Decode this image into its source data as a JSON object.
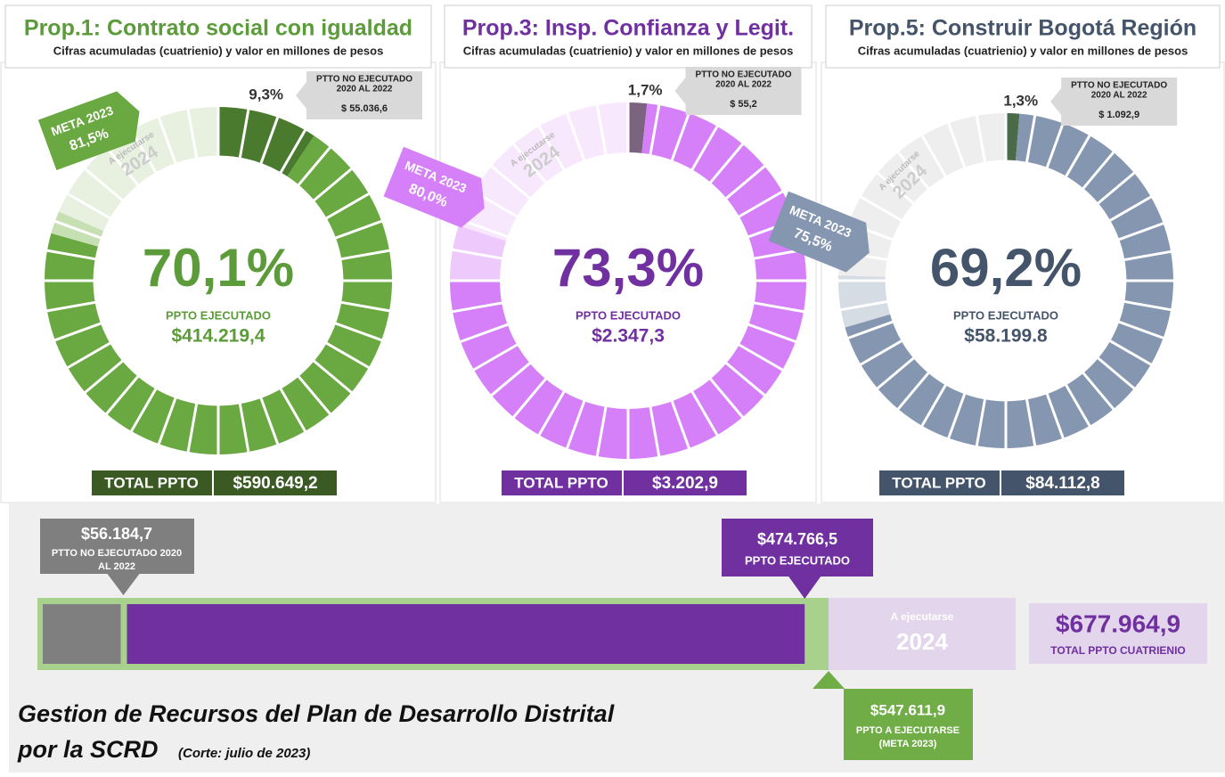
{
  "panels": [
    {
      "title": "Prop.1: Contrato social con igualdad",
      "subtitle": "Cifras acumuladas (cuatrienio) y valor en millones de pesos",
      "not_executed": {
        "value": 9.3,
        "label": "9,3%"
      },
      "not_executed_caption": [
        "PTTO NO EJECUTADO",
        "2020 AL 2022"
      ],
      "not_executed_amount": "$ 55.036,6",
      "meta": {
        "value": 81.5,
        "label": "81,5%"
      },
      "meta_caption": "META 2023",
      "pending_caption": "A ejecutarse",
      "pending_year": "2024",
      "executed": {
        "value": 70.1,
        "label": "70,1%"
      },
      "executed_caption": "PPTO EJECUTADO",
      "executed_amount": "$414.219,4",
      "total_caption": "TOTAL PPTO",
      "total_amount": "$590.649,2",
      "colors": {
        "executed": "#6aa842",
        "not_executed": "#4a7a2e",
        "meta": "#c6e0b4",
        "pending": "#e8f1e0",
        "text": "#5b9b3a",
        "total": "#3b5a23"
      }
    },
    {
      "title": "Prop.3: Insp. Confianza y Legit.",
      "subtitle": "Cifras acumuladas (cuatrienio) y valor en millones de pesos",
      "not_executed": {
        "value": 1.7,
        "label": "1,7%"
      },
      "not_executed_caption": [
        "PTTO NO EJECUTADO",
        "2020 AL 2022"
      ],
      "not_executed_amount": "$ 55,2",
      "meta": {
        "value": 80.0,
        "label": "80,0%"
      },
      "meta_caption": "META 2023",
      "pending_caption": "A ejecutarse",
      "pending_year": "2024",
      "executed": {
        "value": 73.3,
        "label": "73,3%"
      },
      "executed_caption": "PPTO EJECUTADO",
      "executed_amount": "$2.347,3",
      "total_caption": "TOTAL PPTO",
      "total_amount": "$3.202,9",
      "colors": {
        "executed": "#d580f8",
        "not_executed": "#7c6480",
        "meta": "#eec9fb",
        "pending": "#f8e8fd",
        "text": "#7030a0",
        "total": "#7030a0"
      }
    },
    {
      "title": "Prop.5: Construir Bogotá Región",
      "subtitle": "Cifras acumuladas (cuatrienio) y valor en millones de pesos",
      "not_executed": {
        "value": 1.3,
        "label": "1,3%"
      },
      "not_executed_caption": [
        "PTTO NO EJECUTADO",
        "2020 AL 2022"
      ],
      "not_executed_amount": "$ 1.092,9",
      "meta": {
        "value": 75.5,
        "label": "75,5%"
      },
      "meta_caption": "META 2023",
      "pending_caption": "A ejecutarse",
      "pending_year": "2024",
      "executed": {
        "value": 69.2,
        "label": "69,2%"
      },
      "executed_caption": "PPTO EJECUTADO",
      "executed_amount": "$58.199.8",
      "total_caption": "TOTAL PPTO",
      "total_amount": "$84.112,8",
      "colors": {
        "executed": "#8496b0",
        "not_executed": "#4a6a48",
        "meta": "#d5dce4",
        "pending": "#eeeeee",
        "text": "#44546a",
        "total": "#44546a"
      }
    }
  ],
  "summary": {
    "not_executed": {
      "value": 56184.7,
      "label": "$56.184,7"
    },
    "not_executed_caption": [
      "PTTO NO EJECUTADO 2020",
      "AL 2022"
    ],
    "executed": {
      "value": 474766.5,
      "label": "$474.766,5"
    },
    "executed_caption": "PPTO EJECUTADO",
    "meta": {
      "value": 547611.9,
      "label": "$547.611,9"
    },
    "meta_caption": [
      "PPTO A EJECUTARSE",
      "(META 2023)"
    ],
    "pending_caption": "A ejecutarse",
    "pending_year": "2024",
    "total": {
      "value": 677964.9,
      "label": "$677.964,9"
    },
    "total_caption": "TOTAL PPTO CUATRIENIO"
  },
  "footer": {
    "title_lines": [
      "Gestion de Recursos del Plan de Desarrollo Distrital",
      "por la SCRD"
    ],
    "note": "(Corte: julio de 2023)"
  }
}
